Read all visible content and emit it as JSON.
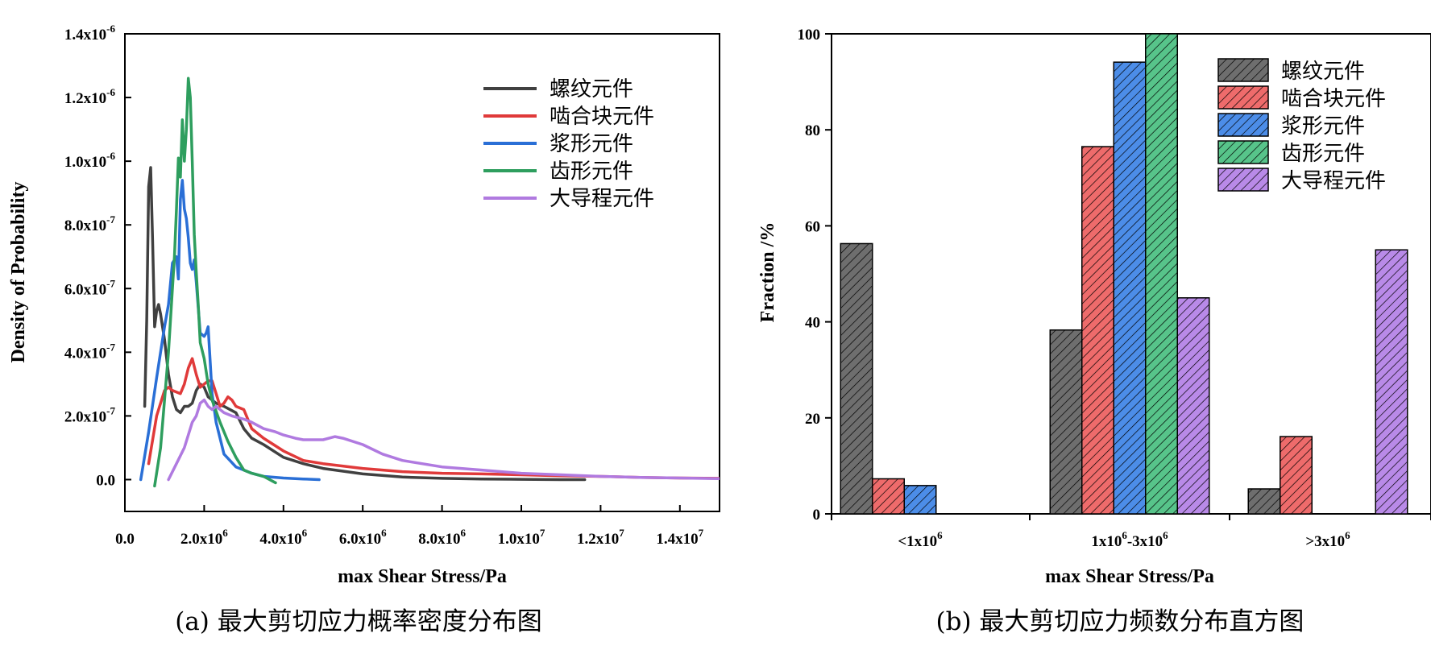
{
  "chart_data": [
    {
      "id": "a",
      "type": "line",
      "caption": "(a) 最大剪切应力概率密度分布图",
      "xlabel": "max Shear Stress/Pa",
      "ylabel": "Density of Probability",
      "xlim": [
        0,
        15000000
      ],
      "ylim": [
        -1e-07,
        1.4e-06
      ],
      "x_ticks": [
        {
          "value": 0,
          "mant": "0.0",
          "exp": ""
        },
        {
          "value": 2000000,
          "mant": "2.0x10",
          "exp": "6"
        },
        {
          "value": 4000000,
          "mant": "4.0x10",
          "exp": "6"
        },
        {
          "value": 6000000,
          "mant": "6.0x10",
          "exp": "6"
        },
        {
          "value": 8000000,
          "mant": "8.0x10",
          "exp": "6"
        },
        {
          "value": 10000000,
          "mant": "1.0x10",
          "exp": "7"
        },
        {
          "value": 12000000,
          "mant": "1.2x10",
          "exp": "7"
        },
        {
          "value": 14000000,
          "mant": "1.4x10",
          "exp": "7"
        }
      ],
      "y_ticks": [
        {
          "value": 0,
          "mant": "0.0",
          "exp": ""
        },
        {
          "value": 2e-07,
          "mant": "2.0x10",
          "exp": "-7"
        },
        {
          "value": 4e-07,
          "mant": "4.0x10",
          "exp": "-7"
        },
        {
          "value": 6e-07,
          "mant": "6.0x10",
          "exp": "-7"
        },
        {
          "value": 8e-07,
          "mant": "8.0x10",
          "exp": "-7"
        },
        {
          "value": 1e-06,
          "mant": "1.0x10",
          "exp": "-6"
        },
        {
          "value": 1.2e-06,
          "mant": "1.2x10",
          "exp": "-6"
        },
        {
          "value": 1.4e-06,
          "mant": "1.4x10",
          "exp": "-6"
        }
      ],
      "legend_position": "top-right",
      "series": [
        {
          "name": "螺纹元件",
          "color": "#404040",
          "x": [
            500000,
            550000,
            600000,
            650000,
            700000,
            750000,
            800000,
            850000,
            900000,
            950000,
            1000000,
            1100000,
            1200000,
            1300000,
            1400000,
            1500000,
            1600000,
            1700000,
            1800000,
            1900000,
            2000000,
            2100000,
            2200000,
            2300000,
            2500000,
            2800000,
            3000000,
            3200000,
            3500000,
            4000000,
            4500000,
            5000000,
            6000000,
            7000000,
            8000000,
            9000000,
            10000000,
            11000000,
            11600000
          ],
          "y": [
            2.3e-07,
            5e-07,
            9.2e-07,
            9.8e-07,
            7.5e-07,
            4.8e-07,
            5.3e-07,
            5.5e-07,
            5.2e-07,
            4.8e-07,
            4.4e-07,
            3.3e-07,
            2.6e-07,
            2.2e-07,
            2.1e-07,
            2.3e-07,
            2.3e-07,
            2.4e-07,
            2.8e-07,
            3e-07,
            2.9e-07,
            2.6e-07,
            2.5e-07,
            2.4e-07,
            2.3e-07,
            2.1e-07,
            1.6e-07,
            1.3e-07,
            1.1e-07,
            7e-08,
            5e-08,
            3.5e-08,
            1.8e-08,
            8e-09,
            4e-09,
            2e-09,
            1e-09,
            0,
            0
          ]
        },
        {
          "name": "啮合块元件",
          "color": "#e03a3a",
          "x": [
            600000,
            800000,
            1000000,
            1100000,
            1200000,
            1400000,
            1500000,
            1600000,
            1700000,
            1800000,
            1900000,
            2000000,
            2100000,
            2200000,
            2300000,
            2400000,
            2500000,
            2600000,
            2700000,
            2800000,
            3000000,
            3200000,
            3500000,
            4000000,
            4500000,
            5000000,
            6000000,
            7000000,
            8000000,
            9000000,
            10000000,
            11000000,
            12000000,
            13000000,
            14000000,
            15000000
          ],
          "y": [
            5e-08,
            2e-07,
            2.8e-07,
            2.9e-07,
            2.8e-07,
            2.7e-07,
            3e-07,
            3.5e-07,
            3.8e-07,
            3.3e-07,
            2.9e-07,
            3e-07,
            3.1e-07,
            3.1e-07,
            2.7e-07,
            2.3e-07,
            2.4e-07,
            2.6e-07,
            2.5e-07,
            2.3e-07,
            2.2e-07,
            1.6e-07,
            1.3e-07,
            9e-08,
            6e-08,
            5e-08,
            3.5e-08,
            2.5e-08,
            2e-08,
            1.8e-08,
            1.5e-08,
            1.2e-08,
            1e-08,
            7e-09,
            5e-09,
            4e-09
          ]
        },
        {
          "name": "浆形元件",
          "color": "#2a6fd6",
          "x": [
            400000,
            600000,
            800000,
            900000,
            1000000,
            1100000,
            1200000,
            1300000,
            1350000,
            1400000,
            1450000,
            1500000,
            1550000,
            1600000,
            1650000,
            1700000,
            1750000,
            1800000,
            1900000,
            2000000,
            2050000,
            2100000,
            2200000,
            2300000,
            2500000,
            2800000,
            3000000,
            3200000,
            3500000,
            4000000,
            4500000,
            4900000
          ],
          "y": [
            0,
            1.5e-07,
            3.2e-07,
            4e-07,
            4.8e-07,
            5.5e-07,
            6.8e-07,
            7e-07,
            6.3e-07,
            8.8e-07,
            9.4e-07,
            8.5e-07,
            8.2e-07,
            7.6e-07,
            6.8e-07,
            6.6e-07,
            6.9e-07,
            6.2e-07,
            4.6e-07,
            4.5e-07,
            4.6e-07,
            4.8e-07,
            2.7e-07,
            1.8e-07,
            8e-08,
            4e-08,
            3e-08,
            2e-08,
            1e-08,
            5e-09,
            2e-09,
            0
          ]
        },
        {
          "name": "齿形元件",
          "color": "#2e9e5e",
          "x": [
            750000,
            900000,
            1000000,
            1100000,
            1200000,
            1250000,
            1300000,
            1350000,
            1400000,
            1450000,
            1500000,
            1550000,
            1600000,
            1650000,
            1700000,
            1750000,
            1800000,
            1850000,
            1900000,
            2000000,
            2100000,
            2200000,
            2400000,
            2600000,
            2800000,
            3000000,
            3200000,
            3500000,
            3800000
          ],
          "y": [
            -2e-08,
            1e-07,
            2.5e-07,
            4e-07,
            6e-07,
            7e-07,
            8.5e-07,
            1.01e-06,
            9.5e-07,
            1.13e-06,
            1e-06,
            1.1e-06,
            1.26e-06,
            1.2e-06,
            1e-06,
            7.7e-07,
            6.5e-07,
            5.5e-07,
            4.3e-07,
            3.8e-07,
            3e-07,
            2.5e-07,
            1.8e-07,
            1.2e-07,
            7e-08,
            3e-08,
            2e-08,
            1e-08,
            -1e-08
          ]
        },
        {
          "name": "大导程元件",
          "color": "#b07ae0",
          "x": [
            1100000,
            1300000,
            1500000,
            1700000,
            1800000,
            1900000,
            2000000,
            2100000,
            2200000,
            2300000,
            2500000,
            2700000,
            3000000,
            3200000,
            3500000,
            3800000,
            4000000,
            4300000,
            4500000,
            5000000,
            5300000,
            5500000,
            6000000,
            6500000,
            7000000,
            8000000,
            9000000,
            10000000,
            11000000,
            12000000,
            13000000,
            14000000,
            15000000
          ],
          "y": [
            0,
            5e-08,
            1e-07,
            1.8e-07,
            2e-07,
            2.4e-07,
            2.5e-07,
            2.3e-07,
            2.2e-07,
            2.3e-07,
            2.1e-07,
            2e-07,
            1.9e-07,
            1.8e-07,
            1.6e-07,
            1.5e-07,
            1.4e-07,
            1.3e-07,
            1.25e-07,
            1.25e-07,
            1.35e-07,
            1.3e-07,
            1.1e-07,
            8e-08,
            6e-08,
            4e-08,
            3e-08,
            2e-08,
            1.5e-08,
            1e-08,
            7e-09,
            5e-09,
            3e-09
          ]
        }
      ]
    },
    {
      "id": "b",
      "type": "bar",
      "caption": "(b) 最大剪切应力频数分布直方图",
      "xlabel": "max Shear Stress/Pa",
      "ylabel": "Fraction /%",
      "ylim": [
        0,
        100
      ],
      "y_ticks": [
        0,
        20,
        40,
        60,
        80,
        100
      ],
      "categories": [
        {
          "mant": "<1x10",
          "exp": "6",
          "tail": ""
        },
        {
          "mant": "1x10",
          "exp": "6",
          "tail": "-3x10",
          "exp2": "6"
        },
        {
          "mant": ">3x10",
          "exp": "6",
          "tail": ""
        }
      ],
      "legend_position": "top-right",
      "series": [
        {
          "name": "螺纹元件",
          "color": "#6e6e6e",
          "values": [
            56.3,
            38.3,
            5.2
          ]
        },
        {
          "name": "啮合块元件",
          "color": "#ee6b6b",
          "values": [
            7.3,
            76.5,
            16.1
          ]
        },
        {
          "name": "浆形元件",
          "color": "#4c8de8",
          "values": [
            5.9,
            94.1,
            0
          ]
        },
        {
          "name": "齿形元件",
          "color": "#57c48a",
          "values": [
            0,
            100,
            0
          ]
        },
        {
          "name": "大导程元件",
          "color": "#b98ae8",
          "values": [
            0,
            45,
            55
          ]
        }
      ]
    }
  ]
}
